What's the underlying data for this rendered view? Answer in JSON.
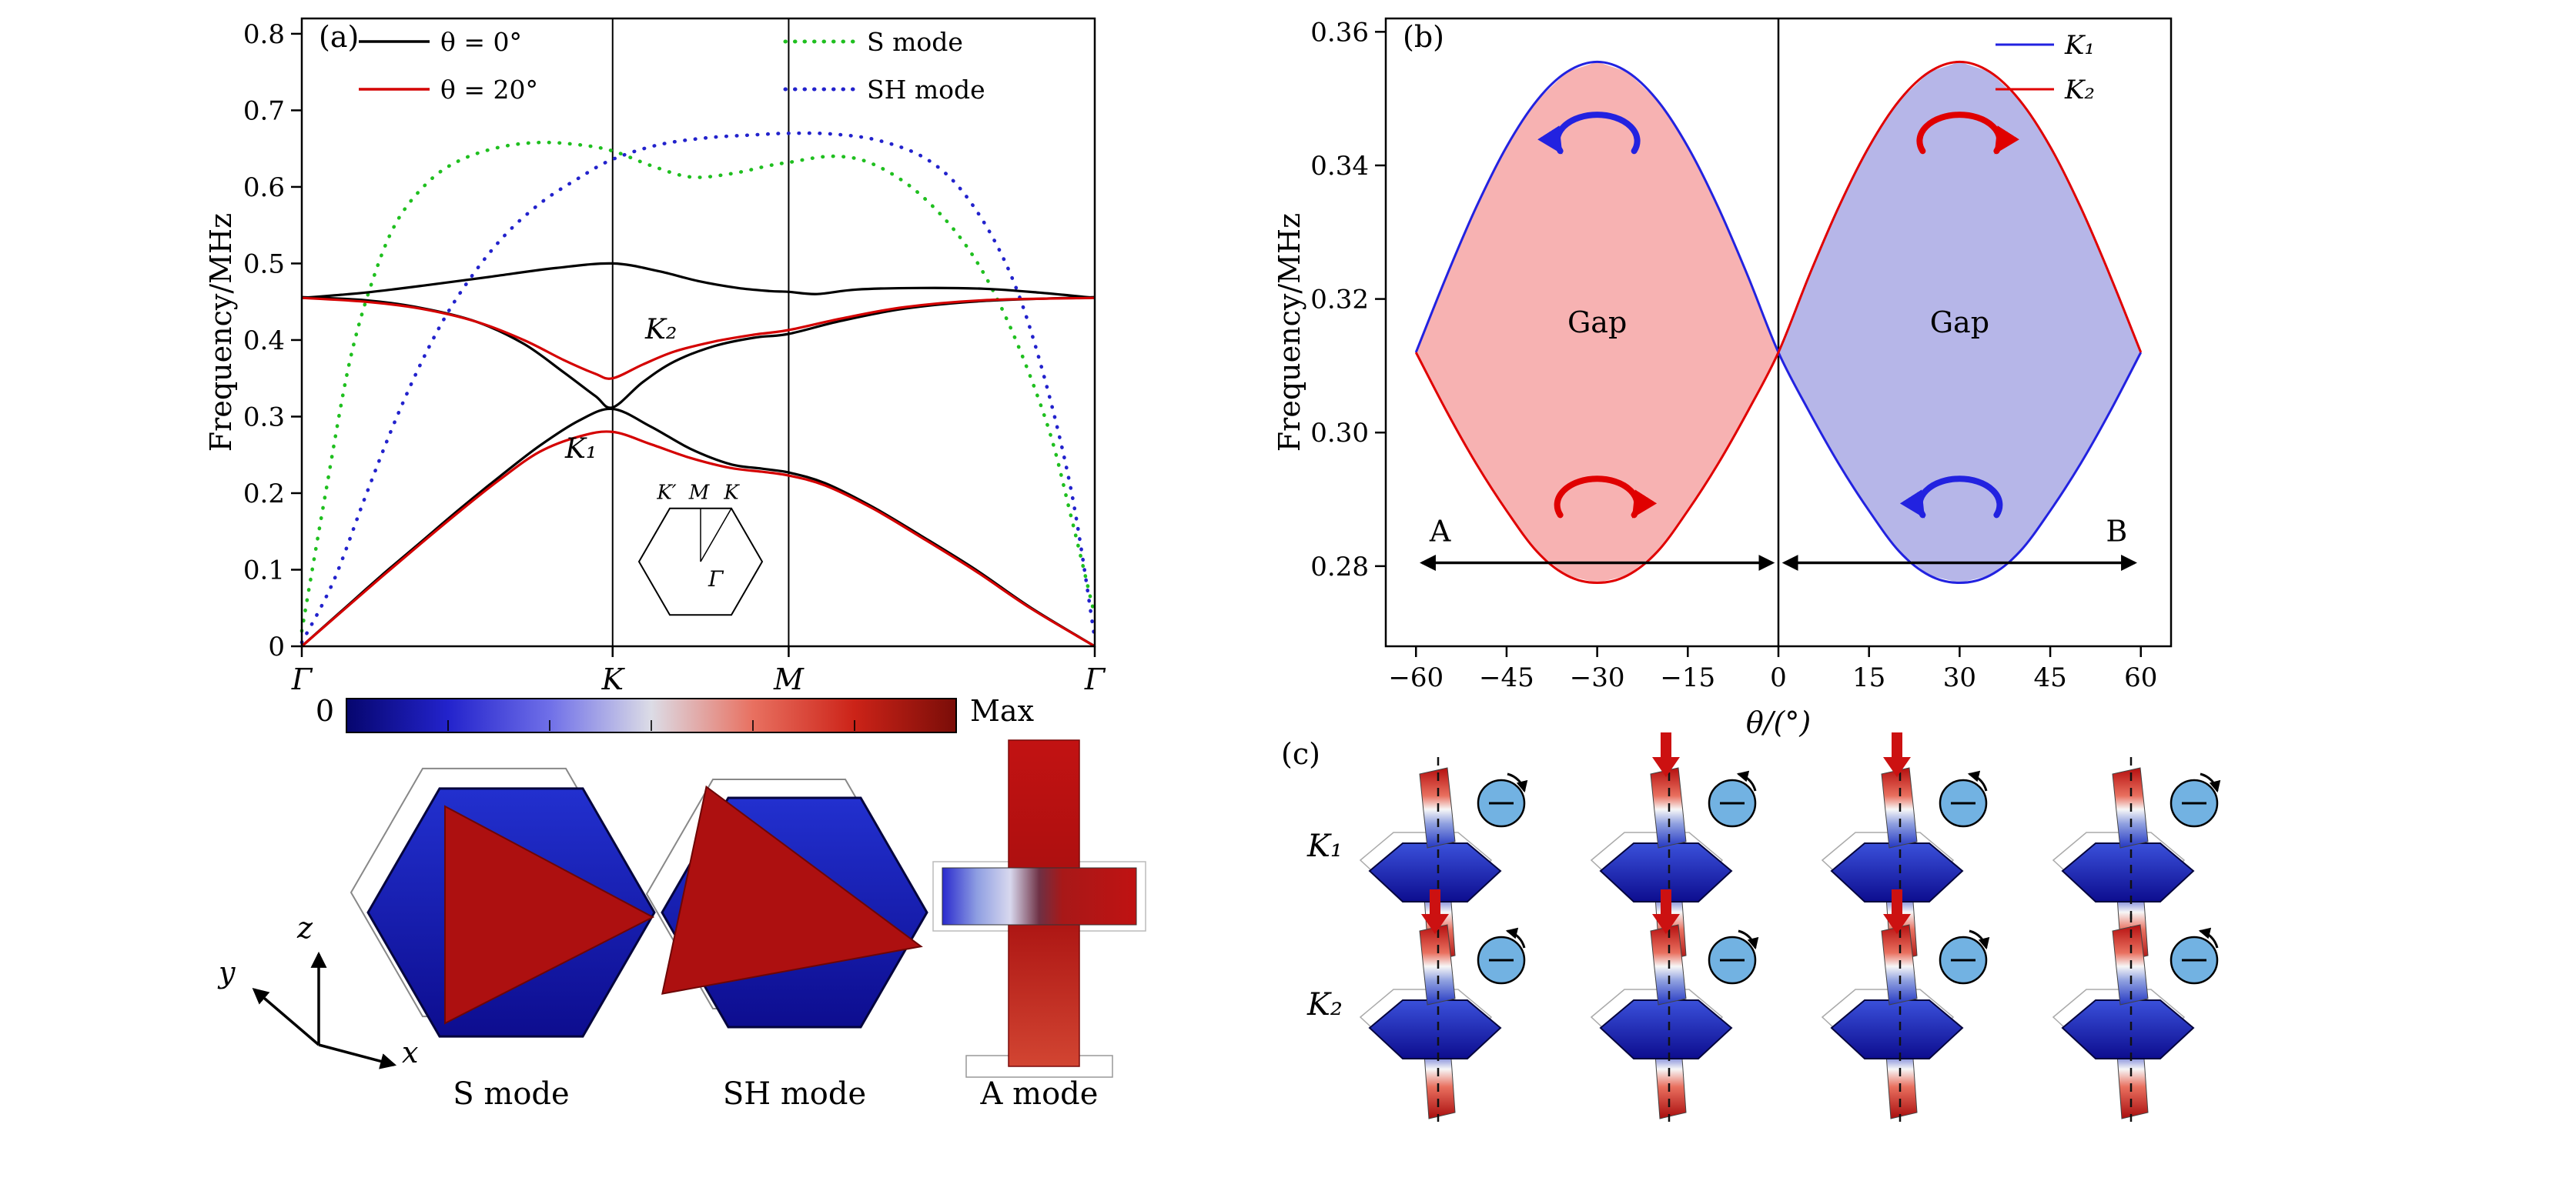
{
  "panels": {
    "a": {
      "label": "(a)",
      "colorbar": {
        "left_label": "0",
        "right_label": "Max",
        "colors": [
          "#06066e",
          "#2323cc",
          "#6f6fe8",
          "#dcdce6",
          "#e87060",
          "#cc2318",
          "#7a0d08"
        ]
      },
      "modes": [
        {
          "label": "S mode"
        },
        {
          "label": "SH mode"
        },
        {
          "label": "A mode"
        }
      ],
      "triad": {
        "x": "x",
        "y": "y",
        "z": "z"
      }
    },
    "b": {
      "label": "(b)"
    },
    "c": {
      "label": "(c)",
      "rows": [
        {
          "label": "K₁",
          "cells": [
            {
              "red_arrow": false,
              "spin": "cw"
            },
            {
              "red_arrow": true,
              "spin": "ccw"
            },
            {
              "red_arrow": true,
              "spin": "ccw"
            },
            {
              "red_arrow": false,
              "spin": "cw"
            }
          ]
        },
        {
          "label": "K₂",
          "cells": [
            {
              "red_arrow": true,
              "spin": "ccw"
            },
            {
              "red_arrow": true,
              "spin": "cw"
            },
            {
              "red_arrow": true,
              "spin": "cw"
            },
            {
              "red_arrow": false,
              "spin": "ccw"
            }
          ]
        }
      ]
    }
  },
  "chart_data": [
    {
      "type": "line",
      "panel": "a",
      "ylabel": "Frequency/MHz",
      "ylim": [
        0,
        0.82
      ],
      "ytick_values": [
        0,
        0.1,
        0.2,
        0.3,
        0.4,
        0.5,
        0.6,
        0.7,
        0.8
      ],
      "ytick_labels": [
        "0",
        "0.1",
        "0.2",
        "0.3",
        "0.4",
        "0.5",
        "0.6",
        "0.7",
        "0.8"
      ],
      "x_path_labels": [
        "Γ",
        "K",
        "M",
        "Γ"
      ],
      "x_path_positions": [
        0,
        0.392,
        0.614,
        1
      ],
      "legend": [
        {
          "label": "θ = 0°",
          "color": "#000000",
          "dash": false
        },
        {
          "label": "θ = 20°",
          "color": "#d40000",
          "dash": false
        },
        {
          "label": "S mode",
          "color": "#1fbf1f",
          "dash": true
        },
        {
          "label": "SH mode",
          "color": "#2222cc",
          "dash": true
        }
      ],
      "annotations": [
        {
          "text": "K₂",
          "x": 0.433,
          "y": 0.402
        },
        {
          "text": "K₁",
          "x": 0.332,
          "y": 0.246
        }
      ],
      "inset": {
        "corner_labels": [
          "K′",
          "M",
          "K"
        ],
        "center_label": "Γ"
      },
      "series": [
        {
          "name": "theta-0-lower",
          "color": "#000000",
          "dash": false,
          "points": [
            [
              0,
              0
            ],
            [
              0.05,
              0.046
            ],
            [
              0.1,
              0.092
            ],
            [
              0.15,
              0.136
            ],
            [
              0.2,
              0.18
            ],
            [
              0.25,
              0.222
            ],
            [
              0.3,
              0.262
            ],
            [
              0.35,
              0.295
            ],
            [
              0.392,
              0.31
            ],
            [
              0.44,
              0.287
            ],
            [
              0.49,
              0.258
            ],
            [
              0.54,
              0.238
            ],
            [
              0.58,
              0.232
            ],
            [
              0.614,
              0.227
            ],
            [
              0.66,
              0.213
            ],
            [
              0.72,
              0.182
            ],
            [
              0.78,
              0.145
            ],
            [
              0.85,
              0.1
            ],
            [
              0.92,
              0.05
            ],
            [
              1,
              0
            ]
          ]
        },
        {
          "name": "theta-0-upper",
          "color": "#000000",
          "dash": false,
          "points": [
            [
              0,
              0.455
            ],
            [
              0.08,
              0.462
            ],
            [
              0.16,
              0.472
            ],
            [
              0.24,
              0.483
            ],
            [
              0.32,
              0.494
            ],
            [
              0.392,
              0.5
            ],
            [
              0.45,
              0.49
            ],
            [
              0.5,
              0.477
            ],
            [
              0.55,
              0.468
            ],
            [
              0.59,
              0.464
            ],
            [
              0.614,
              0.463
            ],
            [
              0.65,
              0.46
            ],
            [
              0.7,
              0.466
            ],
            [
              0.78,
              0.468
            ],
            [
              0.86,
              0.467
            ],
            [
              0.93,
              0.462
            ],
            [
              1,
              0.455
            ]
          ]
        },
        {
          "name": "theta-0-middle",
          "color": "#000000",
          "dash": false,
          "points": [
            [
              0,
              0.456
            ],
            [
              0.08,
              0.452
            ],
            [
              0.15,
              0.442
            ],
            [
              0.22,
              0.424
            ],
            [
              0.28,
              0.395
            ],
            [
              0.33,
              0.358
            ],
            [
              0.37,
              0.327
            ],
            [
              0.392,
              0.312
            ],
            [
              0.43,
              0.345
            ],
            [
              0.47,
              0.372
            ],
            [
              0.52,
              0.392
            ],
            [
              0.57,
              0.403
            ],
            [
              0.614,
              0.408
            ],
            [
              0.68,
              0.425
            ],
            [
              0.76,
              0.441
            ],
            [
              0.86,
              0.451
            ],
            [
              1,
              0.456
            ]
          ]
        },
        {
          "name": "theta-20-lower",
          "color": "#d40000",
          "dash": false,
          "points": [
            [
              0,
              0
            ],
            [
              0.05,
              0.045
            ],
            [
              0.1,
              0.09
            ],
            [
              0.15,
              0.134
            ],
            [
              0.2,
              0.177
            ],
            [
              0.25,
              0.218
            ],
            [
              0.3,
              0.254
            ],
            [
              0.35,
              0.274
            ],
            [
              0.392,
              0.28
            ],
            [
              0.44,
              0.264
            ],
            [
              0.49,
              0.246
            ],
            [
              0.54,
              0.233
            ],
            [
              0.58,
              0.228
            ],
            [
              0.614,
              0.223
            ],
            [
              0.66,
              0.21
            ],
            [
              0.72,
              0.18
            ],
            [
              0.78,
              0.143
            ],
            [
              0.85,
              0.098
            ],
            [
              0.92,
              0.049
            ],
            [
              1,
              0
            ]
          ]
        },
        {
          "name": "theta-20-upper",
          "color": "#d40000",
          "dash": false,
          "points": [
            [
              0,
              0.455
            ],
            [
              0.08,
              0.45
            ],
            [
              0.15,
              0.441
            ],
            [
              0.22,
              0.424
            ],
            [
              0.28,
              0.4
            ],
            [
              0.33,
              0.374
            ],
            [
              0.37,
              0.356
            ],
            [
              0.392,
              0.35
            ],
            [
              0.43,
              0.368
            ],
            [
              0.47,
              0.385
            ],
            [
              0.52,
              0.398
            ],
            [
              0.57,
              0.407
            ],
            [
              0.614,
              0.413
            ],
            [
              0.68,
              0.428
            ],
            [
              0.76,
              0.443
            ],
            [
              0.86,
              0.452
            ],
            [
              1,
              0.455
            ]
          ]
        },
        {
          "name": "S-mode",
          "color": "#1fbf1f",
          "dash": true,
          "points": [
            [
              0,
              0.02
            ],
            [
              0.03,
              0.2
            ],
            [
              0.06,
              0.37
            ],
            [
              0.09,
              0.48
            ],
            [
              0.12,
              0.555
            ],
            [
              0.16,
              0.607
            ],
            [
              0.2,
              0.635
            ],
            [
              0.25,
              0.652
            ],
            [
              0.3,
              0.658
            ],
            [
              0.35,
              0.655
            ],
            [
              0.392,
              0.647
            ],
            [
              0.44,
              0.628
            ],
            [
              0.49,
              0.613
            ],
            [
              0.54,
              0.617
            ],
            [
              0.59,
              0.628
            ],
            [
              0.614,
              0.632
            ],
            [
              0.67,
              0.64
            ],
            [
              0.72,
              0.63
            ],
            [
              0.78,
              0.59
            ],
            [
              0.84,
              0.52
            ],
            [
              0.89,
              0.425
            ],
            [
              0.94,
              0.29
            ],
            [
              0.97,
              0.17
            ],
            [
              1,
              0.04
            ]
          ]
        },
        {
          "name": "SH-mode",
          "color": "#2222cc",
          "dash": true,
          "points": [
            [
              0,
              0.005
            ],
            [
              0.04,
              0.085
            ],
            [
              0.08,
              0.195
            ],
            [
              0.12,
              0.3
            ],
            [
              0.16,
              0.39
            ],
            [
              0.2,
              0.462
            ],
            [
              0.25,
              0.53
            ],
            [
              0.3,
              0.578
            ],
            [
              0.35,
              0.612
            ],
            [
              0.392,
              0.636
            ],
            [
              0.45,
              0.655
            ],
            [
              0.51,
              0.664
            ],
            [
              0.57,
              0.668
            ],
            [
              0.614,
              0.67
            ],
            [
              0.67,
              0.669
            ],
            [
              0.73,
              0.66
            ],
            [
              0.79,
              0.635
            ],
            [
              0.84,
              0.585
            ],
            [
              0.89,
              0.495
            ],
            [
              0.93,
              0.375
            ],
            [
              0.97,
              0.205
            ],
            [
              1,
              0.01
            ]
          ]
        }
      ]
    },
    {
      "type": "line",
      "panel": "b",
      "xlabel": "θ/(°)",
      "ylabel": "Frequency/MHz",
      "xlim": [
        -65,
        65
      ],
      "ylim": [
        0.268,
        0.362
      ],
      "xtick_values": [
        -60,
        -45,
        -30,
        -15,
        0,
        15,
        30,
        45,
        60
      ],
      "xtick_labels": [
        "−60",
        "−45",
        "−30",
        "−15",
        "0",
        "15",
        "30",
        "45",
        "60"
      ],
      "ytick_values": [
        0.28,
        0.3,
        0.32,
        0.34,
        0.36
      ],
      "ytick_labels": [
        "0.28",
        "0.30",
        "0.32",
        "0.34",
        "0.36"
      ],
      "legend": [
        {
          "label": "K₁",
          "color": "#2222e0"
        },
        {
          "label": "K₂",
          "color": "#e00000"
        }
      ],
      "regions": [
        {
          "label": "Gap",
          "range": [
            -60,
            0
          ],
          "fill": "#f7b2b2",
          "label_x": -30,
          "label_y": 0.315
        },
        {
          "label": "Gap",
          "range": [
            0,
            60
          ],
          "fill": "#b6b6e8",
          "label_x": 30,
          "label_y": 0.315
        }
      ],
      "span_arrows": [
        {
          "label": "A",
          "range": [
            -59,
            -1
          ],
          "y": 0.2805,
          "label_x": -56
        },
        {
          "label": "B",
          "range": [
            1,
            59
          ],
          "y": 0.2805,
          "label_x": 56
        }
      ],
      "rot_arrows": [
        {
          "x": -30,
          "y": 0.344,
          "color": "#2222e0",
          "dir": "ccw"
        },
        {
          "x": -30,
          "y": 0.2895,
          "color": "#e00000",
          "dir": "cw"
        },
        {
          "x": 30,
          "y": 0.344,
          "color": "#e00000",
          "dir": "cw"
        },
        {
          "x": 30,
          "y": 0.2895,
          "color": "#2222e0",
          "dir": "ccw"
        }
      ],
      "series": [
        {
          "name": "K1",
          "color": "#2222e0",
          "points": [
            [
              -60,
              0.312
            ],
            [
              -55,
              0.3233
            ],
            [
              -50,
              0.3338
            ],
            [
              -45,
              0.3428
            ],
            [
              -40,
              0.3497
            ],
            [
              -35,
              0.354
            ],
            [
              -30,
              0.3555
            ],
            [
              -25,
              0.354
            ],
            [
              -20,
              0.3497
            ],
            [
              -15,
              0.3428
            ],
            [
              -10,
              0.3338
            ],
            [
              -5,
              0.3233
            ],
            [
              0,
              0.312
            ],
            [
              5,
              0.3033
            ],
            [
              10,
              0.2953
            ],
            [
              15,
              0.2883
            ],
            [
              20,
              0.2822
            ],
            [
              25,
              0.2786
            ],
            [
              30,
              0.2775
            ],
            [
              35,
              0.2786
            ],
            [
              40,
              0.2822
            ],
            [
              45,
              0.2883
            ],
            [
              50,
              0.2953
            ],
            [
              55,
              0.3033
            ],
            [
              60,
              0.312
            ]
          ]
        },
        {
          "name": "K2",
          "color": "#e00000",
          "points": [
            [
              -60,
              0.312
            ],
            [
              -55,
              0.3033
            ],
            [
              -50,
              0.2953
            ],
            [
              -45,
              0.2883
            ],
            [
              -40,
              0.2822
            ],
            [
              -35,
              0.2786
            ],
            [
              -30,
              0.2775
            ],
            [
              -25,
              0.2786
            ],
            [
              -20,
              0.2822
            ],
            [
              -15,
              0.2883
            ],
            [
              -10,
              0.2953
            ],
            [
              -5,
              0.3033
            ],
            [
              0,
              0.312
            ],
            [
              5,
              0.3233
            ],
            [
              10,
              0.3338
            ],
            [
              15,
              0.3428
            ],
            [
              20,
              0.3497
            ],
            [
              25,
              0.354
            ],
            [
              30,
              0.3555
            ],
            [
              35,
              0.354
            ],
            [
              40,
              0.3497
            ],
            [
              45,
              0.3428
            ],
            [
              50,
              0.3338
            ],
            [
              55,
              0.3233
            ],
            [
              60,
              0.312
            ]
          ]
        }
      ]
    }
  ]
}
